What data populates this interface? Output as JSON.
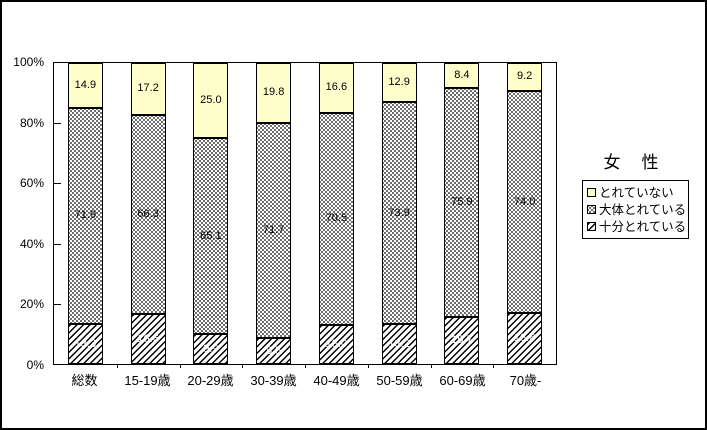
{
  "window": {
    "background": "#ffffff",
    "border_color": "#000000"
  },
  "chart_data": {
    "type": "bar",
    "variant": "stacked-100-percent-column",
    "title": "女　性",
    "categories": [
      "総数",
      "15-19歳",
      "20-29歳",
      "30-39歳",
      "40-49歳",
      "50-59歳",
      "60-69歳",
      "70歳-"
    ],
    "series": [
      {
        "name": "十分とれている",
        "pattern": "hatch",
        "color": "#ffffff",
        "label_color": "#ffffff",
        "values": [
          13.3,
          16.6,
          9.9,
          8.5,
          13.0,
          13.2,
          15.7,
          16.8
        ]
      },
      {
        "name": "大体とれている",
        "pattern": "dots",
        "color": "#ffffff",
        "label_color": "#000000",
        "values": [
          71.9,
          66.3,
          65.1,
          71.7,
          70.5,
          73.9,
          75.9,
          74.0
        ]
      },
      {
        "name": "とれていない",
        "pattern": "solid",
        "color": "#ffffcc",
        "label_color": "#000000",
        "values": [
          14.9,
          17.2,
          25.0,
          19.8,
          16.6,
          12.9,
          8.4,
          9.2
        ]
      }
    ],
    "ylim": [
      0,
      100
    ],
    "y_tick_labels": [
      "0%",
      "20%",
      "40%",
      "60%",
      "80%",
      "100%"
    ],
    "grid": false,
    "legend_position": "right",
    "legend_order": [
      "とれていない",
      "大体とれている",
      "十分とれている"
    ],
    "accent_color": "#ffffcc"
  }
}
